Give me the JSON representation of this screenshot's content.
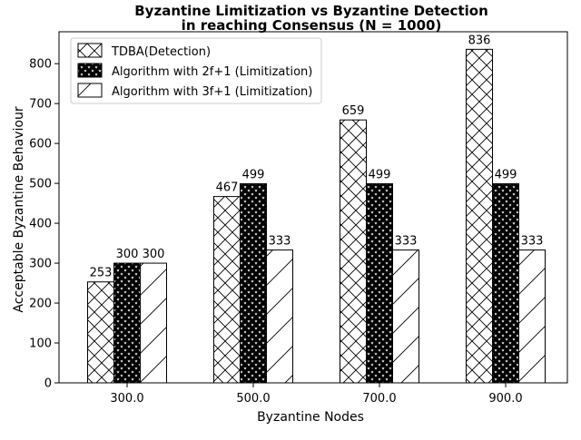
{
  "chart_data": {
    "type": "bar",
    "title": "Byzantine Limitization vs Byzantine Detection",
    "subtitle": "in reaching Consensus (N = 1000)",
    "xlabel": "Byzantine Nodes",
    "ylabel": "Acceptable Byzantine Behaviour",
    "categories": [
      "300.0",
      "500.0",
      "700.0",
      "900.0"
    ],
    "ylim": [
      0,
      880
    ],
    "yticks": [
      "0",
      "100",
      "200",
      "300",
      "400",
      "500",
      "600",
      "700",
      "800"
    ],
    "grid": false,
    "legend_position": "top-left",
    "series": [
      {
        "name": "TDBA(Detection)",
        "values": [
          253,
          467,
          659,
          836
        ],
        "hatch": "crosshatch"
      },
      {
        "name": "Algorithm with 2f+1 (Limitization)",
        "values": [
          300,
          499,
          499,
          499
        ],
        "hatch": "stars"
      },
      {
        "name": "Algorithm with 3f+1 (Limitization)",
        "values": [
          300,
          333,
          333,
          333
        ],
        "hatch": "diagonal"
      }
    ],
    "data_labels": [
      [
        "253",
        "467",
        "659",
        "836"
      ],
      [
        "300",
        "499",
        "499",
        "499"
      ],
      [
        "300",
        "333",
        "333",
        "333"
      ]
    ],
    "colors": {
      "bar_fill": "#ffffff",
      "hatch": "#000000",
      "edge": "#000000"
    }
  }
}
